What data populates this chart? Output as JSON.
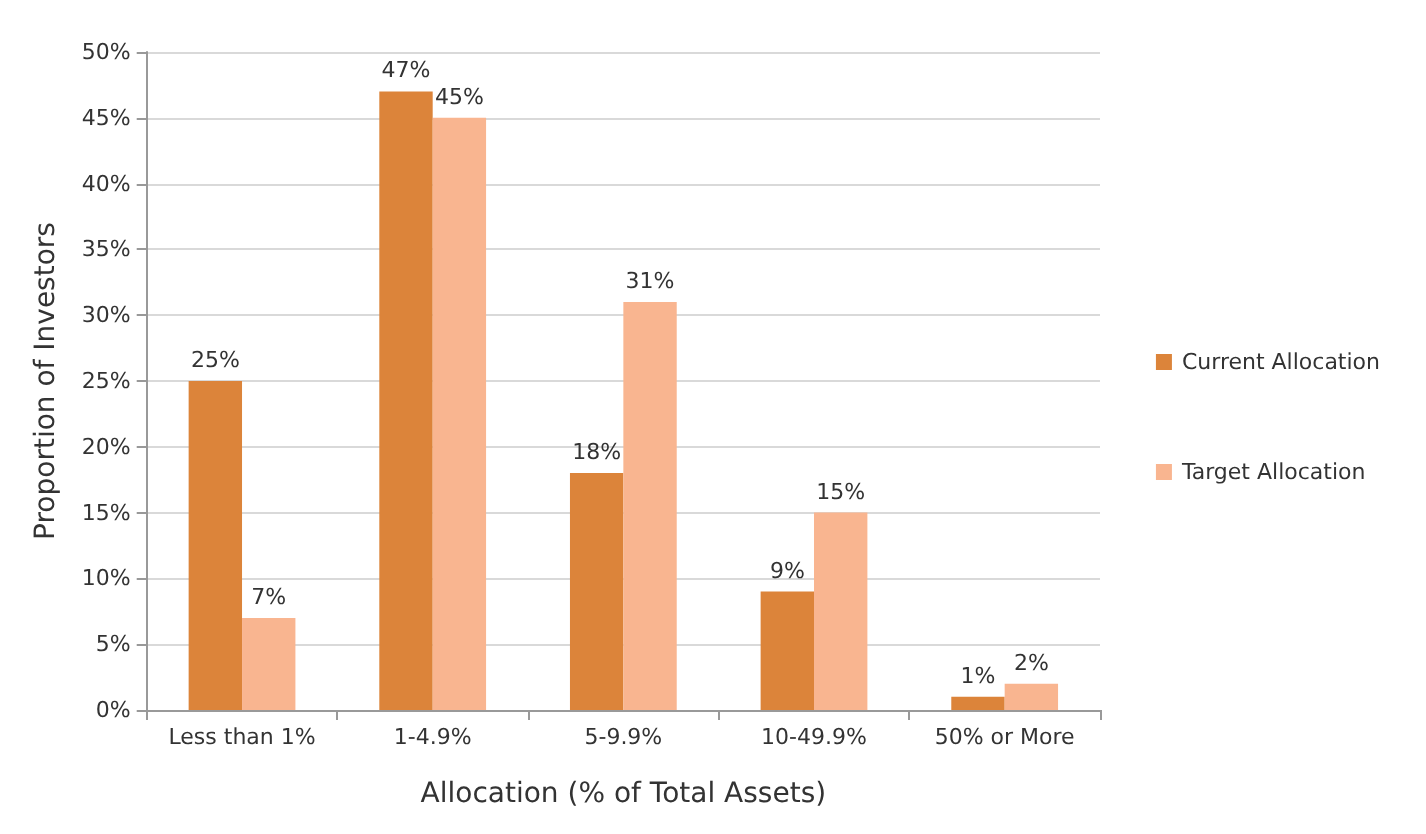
{
  "chart_data": {
    "type": "bar",
    "xlabel": "Allocation (% of Total Assets)",
    "ylabel": "Proportion of Investors",
    "categories": [
      "Less than 1%",
      "1-4.9%",
      "5-9.9%",
      "10-49.9%",
      "50% or More"
    ],
    "series": [
      {
        "name": "Current Allocation",
        "color": "#dc843a",
        "values": [
          25,
          47,
          18,
          9,
          1
        ],
        "value_labels": [
          "25%",
          "47%",
          "18%",
          "9%",
          "1%"
        ]
      },
      {
        "name": "Target Allocation",
        "color": "#f9b590",
        "values": [
          7,
          45,
          31,
          15,
          2
        ],
        "value_labels": [
          "7%",
          "45%",
          "31%",
          "15%",
          "2%"
        ]
      }
    ],
    "ylim": [
      0,
      50
    ],
    "yticks": [
      {
        "value": 0,
        "label": "0%"
      },
      {
        "value": 5,
        "label": "5%"
      },
      {
        "value": 10,
        "label": "10%"
      },
      {
        "value": 15,
        "label": "15%"
      },
      {
        "value": 20,
        "label": "20%"
      },
      {
        "value": 25,
        "label": "25%"
      },
      {
        "value": 30,
        "label": "30%"
      },
      {
        "value": 35,
        "label": "35%"
      },
      {
        "value": 40,
        "label": "40%"
      },
      {
        "value": 45,
        "label": "45%"
      },
      {
        "value": 50,
        "label": "50%"
      }
    ],
    "grid": "y",
    "legend": "right"
  }
}
